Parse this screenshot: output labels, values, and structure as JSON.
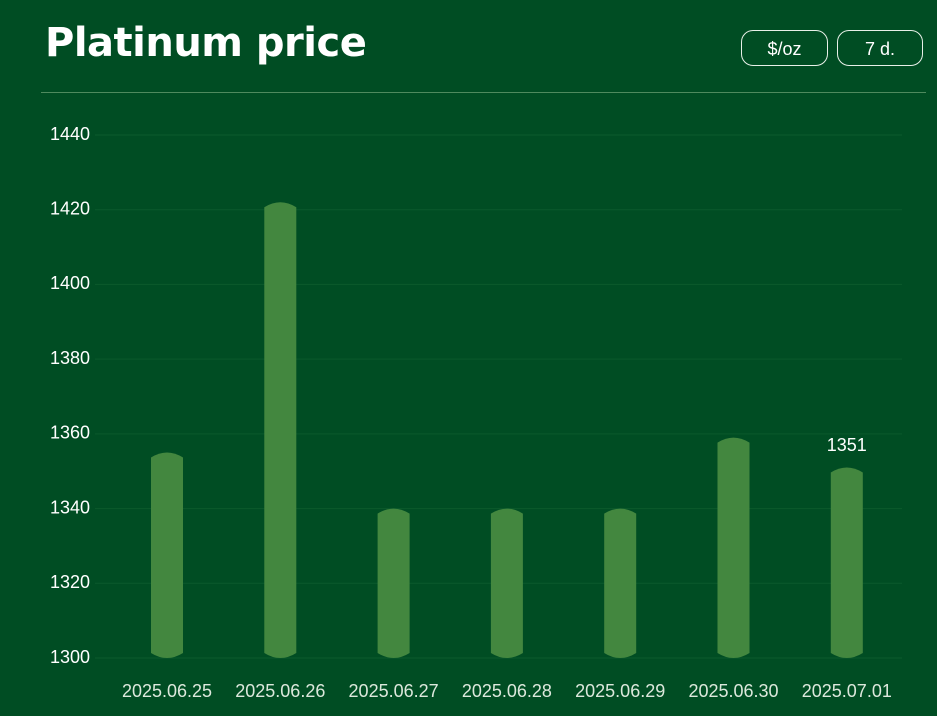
{
  "controls": [
    "$/oz",
    "7 d."
  ],
  "chart_data": {
    "type": "bar",
    "title": "Platinum price",
    "categories": [
      "2025.06.25",
      "2025.06.26",
      "2025.06.27",
      "2025.06.28",
      "2025.06.29",
      "2025.06.30",
      "2025.07.01"
    ],
    "values": [
      1355,
      1422,
      1340,
      1340,
      1340,
      1359,
      1351
    ],
    "color": "#43873f",
    "ylim": [
      1300,
      1440
    ],
    "yticks": [
      1300,
      1320,
      1340,
      1360,
      1380,
      1400,
      1420,
      1440
    ],
    "grid": true
  }
}
